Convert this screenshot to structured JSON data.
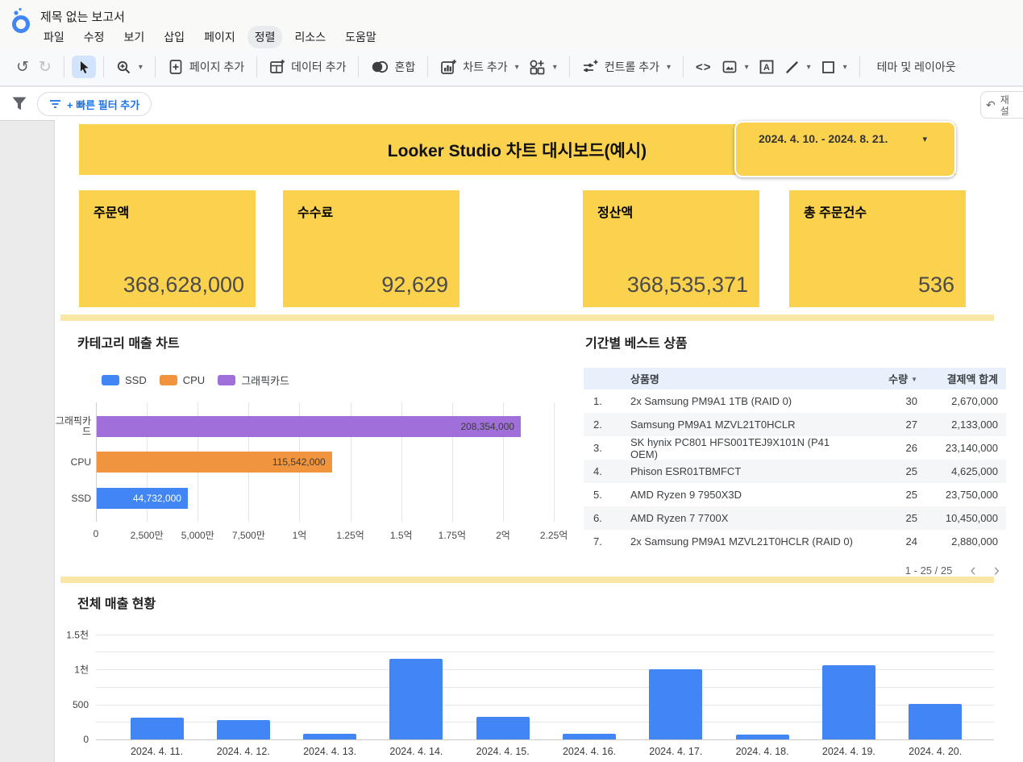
{
  "app": {
    "doc_title": "제목 없는 보고서",
    "menu": [
      "파일",
      "수정",
      "보기",
      "삽입",
      "페이지",
      "정렬",
      "리소스",
      "도움말"
    ],
    "active_menu_index": 5,
    "toolbar": {
      "add_page": "페이지 추가",
      "add_data": "데이터 추가",
      "blend": "혼합",
      "add_chart": "차트 추가",
      "add_control": "컨트롤 추가",
      "theme_layout": "테마 및 레이아웃"
    },
    "filter_bar": {
      "quick_filter": "+ 빠른 필터 추가",
      "reset": "재설정"
    }
  },
  "icons": {
    "undo": "↺",
    "redo": "↻",
    "caret": "▾",
    "embed": "<>",
    "sort_desc": "▼",
    "chevron_left": "‹",
    "chevron_right": "›",
    "reset_arrow": "↶",
    "date_caret": "▾"
  },
  "report": {
    "banner": {
      "title": "Looker Studio 차트 대시보드(예시)",
      "date_range": "2024. 4. 10. - 2024. 8. 21."
    },
    "kpis": [
      {
        "label": "주문액",
        "value": "368,628,000"
      },
      {
        "label": "수수료",
        "value": "92,629"
      },
      {
        "label": "정산액",
        "value": "368,535,371"
      },
      {
        "label": "총 주문건수",
        "value": "536"
      }
    ],
    "best_products": {
      "title": "기간별 베스트 상품",
      "columns": {
        "name": "상품명",
        "qty": "수량",
        "amount": "결제액 합계"
      },
      "rows": [
        {
          "rank": "1.",
          "name": "2x Samsung PM9A1 1TB (RAID 0)",
          "qty": "30",
          "amount": "2,670,000"
        },
        {
          "rank": "2.",
          "name": "Samsung PM9A1 MZVL21T0HCLR",
          "qty": "27",
          "amount": "2,133,000"
        },
        {
          "rank": "3.",
          "name": "SK hynix PC801 HFS001TEJ9X101N (P41 OEM)",
          "qty": "26",
          "amount": "23,140,000"
        },
        {
          "rank": "4.",
          "name": "Phison ESR01TBMFCT",
          "qty": "25",
          "amount": "4,625,000"
        },
        {
          "rank": "5.",
          "name": "AMD Ryzen 9 7950X3D",
          "qty": "25",
          "amount": "23,750,000"
        },
        {
          "rank": "6.",
          "name": "AMD Ryzen 7 7700X",
          "qty": "25",
          "amount": "10,450,000"
        },
        {
          "rank": "7.",
          "name": "2x Samsung PM9A1 MZVL21T0HCLR (RAID 0)",
          "qty": "24",
          "amount": "2,880,000"
        }
      ],
      "pagination": "1 - 25 / 25"
    }
  },
  "chart_data": [
    {
      "type": "bar",
      "orientation": "horizontal",
      "title": "카테고리 매출 차트",
      "legend": [
        {
          "label": "SSD",
          "color": "#4285F4"
        },
        {
          "label": "CPU",
          "color": "#F0953E"
        },
        {
          "label": "그래픽카드",
          "color": "#A16FD9"
        }
      ],
      "categories": [
        "그래픽카드",
        "CPU",
        "SSD"
      ],
      "values": [
        208354000,
        115542000,
        44732000
      ],
      "value_labels": [
        "208,354,000",
        "115,542,000",
        "44,732,000"
      ],
      "bar_colors": [
        "#A16FD9",
        "#F0953E",
        "#4285F4"
      ],
      "label_colors": [
        "#3B3B3B",
        "#3B3B3B",
        "#FFFFFF"
      ],
      "xmax": 230500000,
      "x_ticks": [
        {
          "v": 0,
          "label": "0"
        },
        {
          "v": 25000000,
          "label": "2,500만"
        },
        {
          "v": 50000000,
          "label": "5,000만"
        },
        {
          "v": 75000000,
          "label": "7,500만"
        },
        {
          "v": 100000000,
          "label": "1억"
        },
        {
          "v": 125000000,
          "label": "1.25억"
        },
        {
          "v": 150000000,
          "label": "1.5억"
        },
        {
          "v": 175000000,
          "label": "1.75억"
        },
        {
          "v": 200000000,
          "label": "2억"
        },
        {
          "v": 225000000,
          "label": "2.25억"
        }
      ],
      "grid": true,
      "legend_position": "top"
    },
    {
      "type": "bar",
      "orientation": "vertical",
      "title": "전체 매출 현황",
      "categories": [
        "2024. 4. 11.",
        "2024. 4. 12.",
        "2024. 4. 13.",
        "2024. 4. 14.",
        "2024. 4. 15.",
        "2024. 4. 16.",
        "2024. 4. 17.",
        "2024. 4. 18.",
        "2024. 4. 19.",
        "2024. 4. 20."
      ],
      "values": [
        310,
        280,
        85,
        1150,
        320,
        80,
        1000,
        65,
        1060,
        510
      ],
      "bar_color": "#4285F4",
      "ymax": 1644,
      "y_gridlines": [
        0,
        250,
        500,
        750,
        1000,
        1250,
        1500
      ],
      "y_tick_labels": [
        {
          "v": 0,
          "label": "0"
        },
        {
          "v": 500,
          "label": "500"
        },
        {
          "v": 1000,
          "label": "1천"
        },
        {
          "v": 1500,
          "label": "1.5천"
        }
      ],
      "grid": true
    }
  ],
  "colors": {
    "accent_yellow": "#FBD24E",
    "divider_yellow": "#FAE7A6",
    "link_blue": "#1A73E8",
    "selected_tool_bg": "#D2E3FC",
    "table_header_bg": "#E8F1FB"
  }
}
